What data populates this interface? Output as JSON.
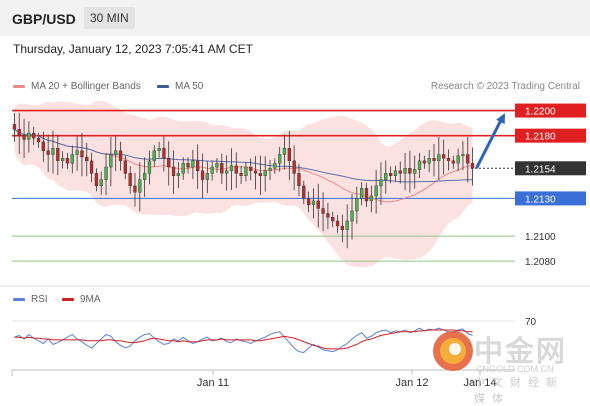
{
  "header": {
    "pair": "GBP/USD",
    "timeframe": "30 MIN"
  },
  "datetime": "Thursday, January 12, 2023 7:05:41 AM CET",
  "legend": {
    "ma20": "MA 20 + Bollinger Bands",
    "ma50": "MA 50",
    "rsi": "RSI",
    "ma9": "9MA"
  },
  "credit": "Research © 2023 Trading Central",
  "colors": {
    "bands": "#fbd7d7",
    "ma20": "#f08a8a",
    "ma50": "#5570b0",
    "resistance": "#e02020",
    "support": "#3b6fd8",
    "target": "#8fc48a",
    "up_candle": "#4caf50",
    "down_candle": "#b52d2d",
    "arrow": "#2d64b8",
    "rsi_line": "#5b7fd6",
    "rsi_ma": "#cc2222"
  },
  "watermark": {
    "title": "中金网",
    "domain": "CNGOLD.COM.CN",
    "slogan": "中文财经新媒体"
  },
  "chart_data": {
    "type": "candlestick",
    "price_range": [
      1.2065,
      1.221
    ],
    "last_price": {
      "value": 1.2154,
      "label": "1.2154"
    },
    "levels": [
      {
        "value": 1.22,
        "label": "1.2200",
        "kind": "resistance"
      },
      {
        "value": 1.218,
        "label": "1.2180",
        "kind": "resistance"
      },
      {
        "value": 1.213,
        "label": "1.2130",
        "kind": "pivot"
      },
      {
        "value": 1.21,
        "label": "1.2100",
        "kind": "target"
      },
      {
        "value": 1.208,
        "label": "1.2080",
        "kind": "target"
      }
    ],
    "x_ticks": [
      "Jan 11",
      "Jan 12",
      "Jan 14"
    ],
    "forecast": {
      "from": 1.2155,
      "to": 1.219
    },
    "closes": [
      1.2185,
      1.218,
      1.2177,
      1.2182,
      1.2178,
      1.2175,
      1.2168,
      1.2165,
      1.217,
      1.216,
      1.2162,
      1.2158,
      1.2165,
      1.2168,
      1.2163,
      1.216,
      1.215,
      1.214,
      1.2145,
      1.2155,
      1.2165,
      1.2168,
      1.216,
      1.215,
      1.214,
      1.2135,
      1.2145,
      1.215,
      1.216,
      1.2168,
      1.217,
      1.2162,
      1.2155,
      1.2148,
      1.215,
      1.2158,
      1.2155,
      1.216,
      1.2152,
      1.2145,
      1.215,
      1.2155,
      1.2158,
      1.215,
      1.2152,
      1.2156,
      1.215,
      1.2148,
      1.2155,
      1.2152,
      1.215,
      1.2148,
      1.2152,
      1.2154,
      1.2158,
      1.2165,
      1.217,
      1.216,
      1.215,
      1.214,
      1.213,
      1.2125,
      1.2128,
      1.2122,
      1.2118,
      1.2115,
      1.2112,
      1.2108,
      1.2105,
      1.2112,
      1.212,
      1.213,
      1.2138,
      1.2128,
      1.2132,
      1.214,
      1.2145,
      1.215,
      1.2148,
      1.2152,
      1.215,
      1.2154,
      1.215,
      1.2153,
      1.216,
      1.2158,
      1.2162,
      1.216,
      1.2165,
      1.2162,
      1.216,
      1.2158,
      1.2164,
      1.2165,
      1.2158,
      1.2154
    ],
    "rsi": {
      "ticks": [
        "70"
      ],
      "range": [
        20,
        80
      ],
      "values": [
        52,
        54,
        50,
        55,
        51,
        48,
        45,
        50,
        44,
        46,
        49,
        52,
        55,
        50,
        47,
        43,
        40,
        45,
        50,
        55,
        53,
        47,
        43,
        40,
        42,
        48,
        52,
        55,
        56,
        51,
        47,
        44,
        45,
        50,
        48,
        52,
        48,
        45,
        47,
        50,
        52,
        48,
        49,
        51,
        47,
        46,
        50,
        48,
        47,
        45,
        48,
        50,
        52,
        55,
        57,
        58,
        52,
        46,
        40,
        36,
        35,
        40,
        44,
        41,
        38,
        37,
        36,
        38,
        42,
        45,
        50,
        54,
        57,
        51,
        53,
        57,
        59,
        60,
        57,
        59,
        58,
        60,
        57,
        59,
        62,
        59,
        61,
        60,
        62,
        60,
        58,
        57,
        60,
        61,
        56,
        54
      ],
      "ma9": [
        52,
        52,
        51,
        52,
        51,
        51,
        50,
        50,
        49,
        49,
        49,
        49,
        49,
        49,
        49,
        48,
        48,
        48,
        48,
        49,
        49,
        48,
        48,
        47,
        46,
        46,
        47,
        48,
        50,
        51,
        50,
        49,
        48,
        48,
        47,
        48,
        47,
        47,
        47,
        48,
        49,
        49,
        49,
        50,
        49,
        49,
        49,
        49,
        49,
        49,
        48,
        48,
        49,
        50,
        51,
        52,
        53,
        52,
        51,
        49,
        47,
        45,
        43,
        42,
        40,
        39,
        39,
        39,
        39,
        40,
        42,
        44,
        47,
        49,
        50,
        52,
        54,
        55,
        56,
        57,
        58,
        58,
        58,
        58,
        59,
        59,
        60,
        60,
        60,
        60,
        60,
        60,
        59,
        59,
        58,
        58
      ]
    }
  }
}
